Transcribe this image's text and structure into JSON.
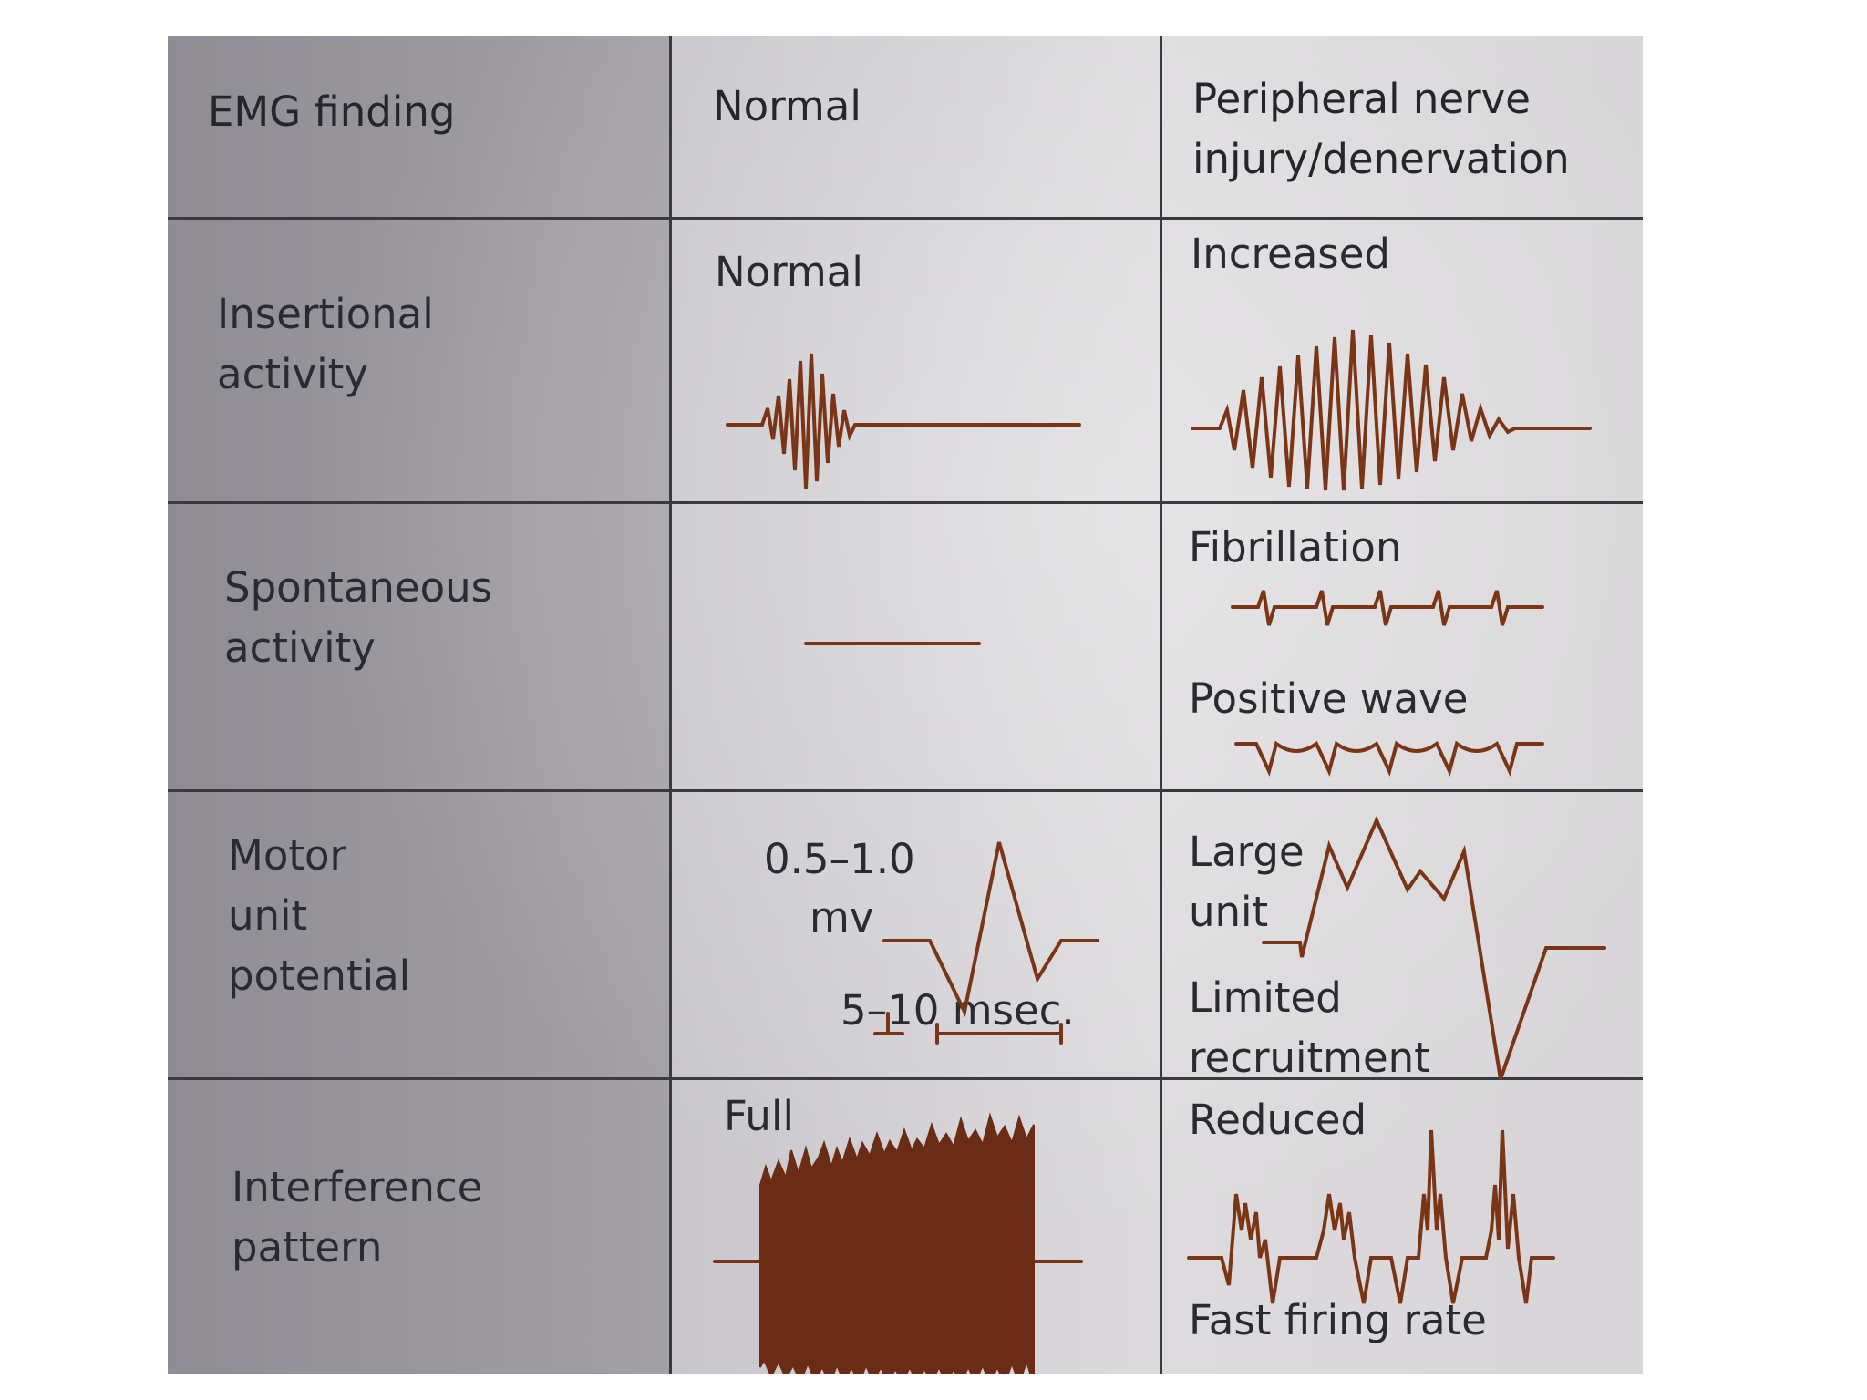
{
  "header": {
    "col1": "EMG finding",
    "col2": "Normal",
    "col3": "Peripheral nerve\ninjury/denervation"
  },
  "rows": [
    {
      "finding": "Insertional\nactivity",
      "normal_label": "Normal",
      "injury_label": "Increased"
    },
    {
      "finding": "Spontaneous\nactivity",
      "injury_label_1": "Fibrillation",
      "injury_label_2": "Positive wave"
    },
    {
      "finding": "Motor\nunit\npotential",
      "normal_amplitude": "0.5–1.0",
      "normal_unit": "mv",
      "normal_duration": "5–10 msec.",
      "injury_label_1": "Large\nunit",
      "injury_label_2": "Limited\nrecruitment"
    },
    {
      "finding": "Interference\npattern",
      "normal_label": "Full",
      "injury_label_1": "Reduced",
      "injury_label_2": "Fast firing rate"
    }
  ],
  "colors": {
    "trace": "#7a3517",
    "ink": "#2a2a32",
    "grid": "#3a3940"
  }
}
